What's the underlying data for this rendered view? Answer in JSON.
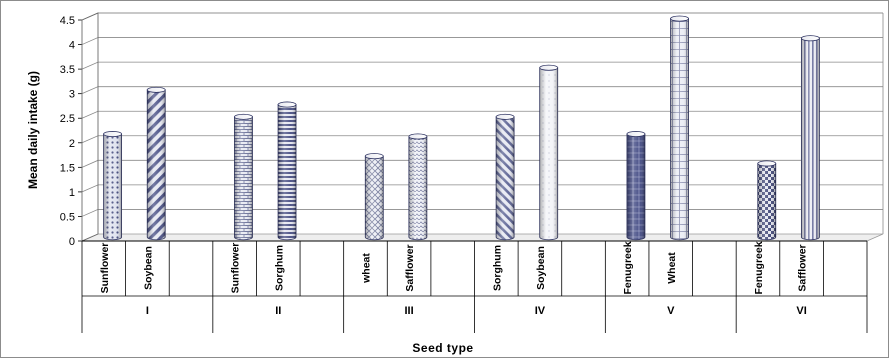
{
  "chart_data": {
    "type": "bar",
    "xlabel": "Seed type",
    "ylabel": "Mean daily intake (g)",
    "ylim": [
      0,
      4.5
    ],
    "yticks": [
      "0",
      "0.5",
      "1",
      "1.5",
      "2",
      "2.5",
      "3",
      "3.5",
      "4",
      "4.5"
    ],
    "grid": true,
    "groups": [
      {
        "label": "I",
        "bars": [
          {
            "category": "Sunflower",
            "value": 2.1
          },
          {
            "category": "Soybean",
            "value": 3.0
          }
        ]
      },
      {
        "label": "II",
        "bars": [
          {
            "category": "Sunflower",
            "value": 2.45
          },
          {
            "category": "Sorghum",
            "value": 2.7
          }
        ]
      },
      {
        "label": "III",
        "bars": [
          {
            "category": "wheat",
            "value": 1.65
          },
          {
            "category": "Safflower",
            "value": 2.05
          }
        ]
      },
      {
        "label": "IV",
        "bars": [
          {
            "category": "Sorghum",
            "value": 2.45
          },
          {
            "category": "Soybean",
            "value": 3.45
          }
        ]
      },
      {
        "label": "V",
        "bars": [
          {
            "category": "Fenugreek",
            "value": 2.1
          },
          {
            "category": "Wheat",
            "value": 4.45
          }
        ]
      },
      {
        "label": "VI",
        "bars": [
          {
            "category": "Fenugreek",
            "value": 1.5
          },
          {
            "category": "Safflower",
            "value": 4.05
          }
        ]
      }
    ]
  }
}
